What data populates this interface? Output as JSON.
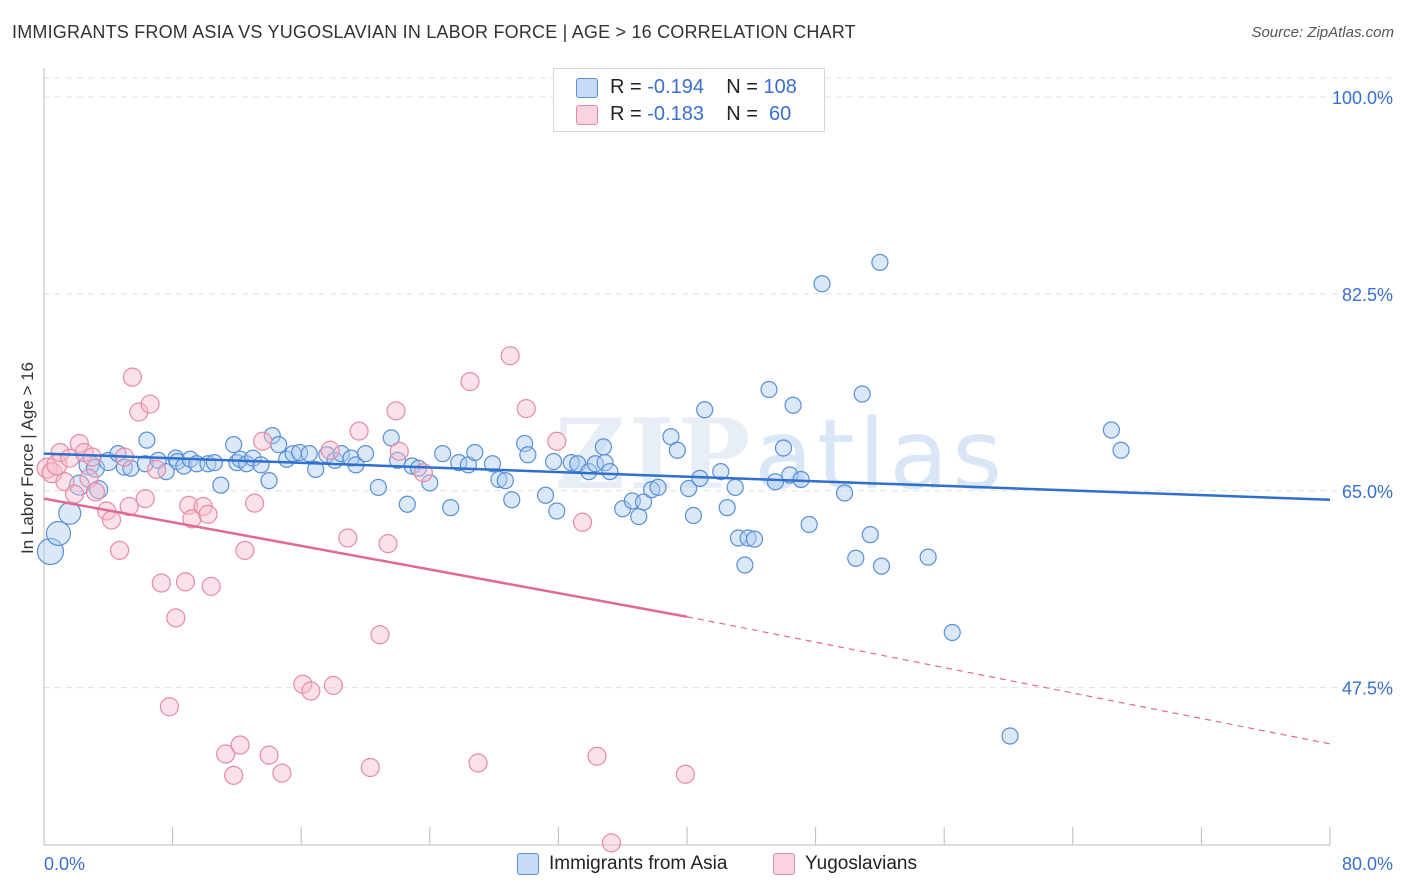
{
  "header": {
    "title": "IMMIGRANTS FROM ASIA VS YUGOSLAVIAN IN LABOR FORCE | AGE > 16 CORRELATION CHART",
    "source": "Source: ZipAtlas.com"
  },
  "legend_stats": [
    {
      "r_label": "R = ",
      "r_value": "-0.194",
      "n_label": "N = ",
      "n_value": "108",
      "color": "#a9c8ef"
    },
    {
      "r_label": "R = ",
      "r_value": "-0.183",
      "n_label": "N = ",
      "n_value": " 60",
      "color": "#f5b8c8"
    }
  ],
  "watermark": {
    "zip": "ZIP",
    "atlas": "atlas"
  },
  "chart_data": {
    "type": "scatter",
    "xlabel": "",
    "ylabel": "In Labor Force | Age > 16",
    "xlim": [
      0,
      80
    ],
    "ylim": [
      32,
      100
    ],
    "x_tick_labels": [
      "0.0%",
      "80.0%"
    ],
    "y_ticks": [
      47.5,
      65.0,
      82.5,
      100.0
    ],
    "y_tick_labels": [
      "47.5%",
      "65.0%",
      "82.5%",
      "100.0%"
    ],
    "grid": true,
    "series": [
      {
        "name": "Immigrants from Asia",
        "color": "#5b8fd6",
        "fill": "#aecbef",
        "trend": {
          "x": [
            0,
            80
          ],
          "y": [
            68.3,
            64.2
          ],
          "color": "#2f6fce"
        },
        "points": [
          [
            0.4,
            59.6,
            13
          ],
          [
            0.9,
            61.2,
            12
          ],
          [
            1.6,
            63.0,
            11
          ],
          [
            2.2,
            65.5,
            10
          ],
          [
            2.8,
            67.3,
            10
          ],
          [
            3.2,
            67.0,
            9
          ],
          [
            3.4,
            65.1,
            9
          ],
          [
            4.0,
            67.6,
            9
          ],
          [
            4.6,
            68.3,
            8
          ],
          [
            5.0,
            67.1,
            8
          ],
          [
            5.4,
            67.0,
            8
          ],
          [
            6.3,
            67.4,
            8
          ],
          [
            6.4,
            69.5,
            8
          ],
          [
            7.1,
            67.7,
            8
          ],
          [
            7.6,
            66.7,
            8
          ],
          [
            8.2,
            67.9,
            8
          ],
          [
            8.3,
            67.6,
            8
          ],
          [
            8.7,
            67.2,
            8
          ],
          [
            9.1,
            67.8,
            8
          ],
          [
            9.5,
            67.4,
            8
          ],
          [
            10.2,
            67.4,
            8
          ],
          [
            10.6,
            67.5,
            8
          ],
          [
            11.0,
            65.5,
            8
          ],
          [
            11.8,
            69.1,
            8
          ],
          [
            12.0,
            67.5,
            8
          ],
          [
            12.2,
            67.8,
            8
          ],
          [
            12.6,
            67.4,
            8
          ],
          [
            13.0,
            67.9,
            8
          ],
          [
            13.5,
            67.3,
            8
          ],
          [
            14.0,
            65.9,
            8
          ],
          [
            14.2,
            69.9,
            8
          ],
          [
            14.6,
            69.1,
            8
          ],
          [
            15.1,
            67.8,
            8
          ],
          [
            15.5,
            68.3,
            8
          ],
          [
            15.9,
            68.4,
            8
          ],
          [
            16.5,
            68.3,
            8
          ],
          [
            16.9,
            66.9,
            8
          ],
          [
            17.6,
            68.2,
            8
          ],
          [
            18.1,
            67.7,
            8
          ],
          [
            18.5,
            68.3,
            8
          ],
          [
            19.1,
            67.9,
            8
          ],
          [
            19.4,
            67.3,
            8
          ],
          [
            20.0,
            68.3,
            8
          ],
          [
            20.8,
            65.3,
            8
          ],
          [
            21.6,
            69.7,
            8
          ],
          [
            22.0,
            67.7,
            8
          ],
          [
            22.6,
            63.8,
            8
          ],
          [
            22.9,
            67.2,
            8
          ],
          [
            23.3,
            67.0,
            8
          ],
          [
            24.0,
            65.7,
            8
          ],
          [
            24.8,
            68.3,
            8
          ],
          [
            25.3,
            63.5,
            8
          ],
          [
            25.8,
            67.5,
            8
          ],
          [
            26.4,
            67.3,
            8
          ],
          [
            26.8,
            68.4,
            8
          ],
          [
            27.9,
            67.4,
            8
          ],
          [
            28.3,
            66.0,
            8
          ],
          [
            28.7,
            65.9,
            8
          ],
          [
            29.1,
            64.2,
            8
          ],
          [
            29.9,
            69.2,
            8
          ],
          [
            30.1,
            68.2,
            8
          ],
          [
            31.2,
            64.6,
            8
          ],
          [
            31.7,
            67.6,
            8
          ],
          [
            31.9,
            63.2,
            8
          ],
          [
            32.8,
            67.5,
            8
          ],
          [
            33.2,
            67.4,
            8
          ],
          [
            33.9,
            66.7,
            8
          ],
          [
            34.3,
            67.4,
            8
          ],
          [
            34.8,
            68.9,
            8
          ],
          [
            34.9,
            67.5,
            8
          ],
          [
            35.2,
            66.7,
            8
          ],
          [
            36.0,
            63.4,
            8
          ],
          [
            36.6,
            64.1,
            8
          ],
          [
            37.0,
            62.7,
            8
          ],
          [
            37.3,
            64.0,
            8
          ],
          [
            37.8,
            65.1,
            8
          ],
          [
            38.2,
            65.3,
            8
          ],
          [
            39.0,
            69.8,
            8
          ],
          [
            39.4,
            68.6,
            8
          ],
          [
            40.1,
            65.2,
            8
          ],
          [
            40.4,
            62.8,
            8
          ],
          [
            40.8,
            66.1,
            8
          ],
          [
            41.1,
            72.2,
            8
          ],
          [
            42.1,
            66.7,
            8
          ],
          [
            42.5,
            63.5,
            8
          ],
          [
            43.0,
            65.3,
            8
          ],
          [
            43.2,
            60.8,
            8
          ],
          [
            43.6,
            58.4,
            8
          ],
          [
            43.8,
            60.8,
            8
          ],
          [
            44.2,
            60.7,
            8
          ],
          [
            45.1,
            74.0,
            8
          ],
          [
            45.5,
            65.8,
            8
          ],
          [
            46.0,
            68.8,
            8
          ],
          [
            46.4,
            66.4,
            8
          ],
          [
            46.6,
            72.6,
            8
          ],
          [
            47.1,
            66.0,
            8
          ],
          [
            47.6,
            62.0,
            8
          ],
          [
            48.4,
            83.4,
            8
          ],
          [
            49.8,
            64.8,
            8
          ],
          [
            50.5,
            59.0,
            8
          ],
          [
            50.9,
            73.6,
            8
          ],
          [
            51.4,
            61.1,
            8
          ],
          [
            52.1,
            58.3,
            8
          ],
          [
            52.0,
            85.3,
            8
          ],
          [
            55.0,
            59.1,
            8
          ],
          [
            56.5,
            52.4,
            8
          ],
          [
            60.1,
            43.2,
            8
          ],
          [
            66.4,
            70.4,
            8
          ],
          [
            67.0,
            68.6,
            8
          ]
        ]
      },
      {
        "name": "Yugoslavians",
        "color": "#e48aa4",
        "fill": "#f6bccb",
        "trend": {
          "x": [
            0,
            40
          ],
          "y": [
            64.3,
            53.8
          ],
          "color": "#e06a92"
        },
        "trend_ext": {
          "x": [
            40,
            80
          ],
          "y": [
            53.8,
            42.5
          ]
        },
        "points": [
          [
            0.2,
            67.0,
            10
          ],
          [
            0.5,
            66.6,
            10
          ],
          [
            0.8,
            67.3,
            10
          ],
          [
            1.0,
            68.4,
            9
          ],
          [
            1.3,
            65.8,
            9
          ],
          [
            1.6,
            67.9,
            9
          ],
          [
            1.9,
            64.7,
            9
          ],
          [
            2.2,
            69.2,
            9
          ],
          [
            2.5,
            68.4,
            9
          ],
          [
            2.8,
            66.1,
            9
          ],
          [
            3.0,
            68.0,
            9
          ],
          [
            3.2,
            64.9,
            9
          ],
          [
            3.9,
            63.2,
            9
          ],
          [
            4.2,
            62.4,
            9
          ],
          [
            4.7,
            59.7,
            9
          ],
          [
            5.0,
            68.0,
            9
          ],
          [
            5.3,
            63.6,
            9
          ],
          [
            5.5,
            75.1,
            9
          ],
          [
            5.9,
            72.0,
            9
          ],
          [
            6.3,
            64.3,
            9
          ],
          [
            6.6,
            72.7,
            9
          ],
          [
            7.0,
            66.9,
            9
          ],
          [
            7.3,
            56.8,
            9
          ],
          [
            7.8,
            45.8,
            9
          ],
          [
            8.2,
            53.7,
            9
          ],
          [
            8.8,
            56.9,
            9
          ],
          [
            9.0,
            63.7,
            9
          ],
          [
            9.2,
            62.5,
            9
          ],
          [
            9.9,
            63.6,
            9
          ],
          [
            10.2,
            62.9,
            9
          ],
          [
            10.4,
            56.5,
            9
          ],
          [
            11.3,
            41.6,
            9
          ],
          [
            11.8,
            39.7,
            9
          ],
          [
            12.2,
            42.4,
            9
          ],
          [
            12.5,
            59.7,
            9
          ],
          [
            13.1,
            63.9,
            9
          ],
          [
            13.6,
            69.4,
            9
          ],
          [
            14.0,
            41.5,
            9
          ],
          [
            14.8,
            39.9,
            9
          ],
          [
            16.1,
            47.8,
            9
          ],
          [
            16.6,
            47.2,
            9
          ],
          [
            17.8,
            68.6,
            9
          ],
          [
            18.0,
            47.7,
            9
          ],
          [
            18.9,
            60.8,
            9
          ],
          [
            19.6,
            70.3,
            9
          ],
          [
            20.3,
            40.4,
            9
          ],
          [
            20.9,
            52.2,
            9
          ],
          [
            21.4,
            60.3,
            9
          ],
          [
            21.9,
            72.1,
            9
          ],
          [
            22.1,
            68.5,
            9
          ],
          [
            23.6,
            66.6,
            9
          ],
          [
            26.5,
            74.7,
            9
          ],
          [
            27.0,
            40.8,
            9
          ],
          [
            29.0,
            77.0,
            9
          ],
          [
            30.0,
            72.3,
            9
          ],
          [
            31.9,
            69.4,
            9
          ],
          [
            33.5,
            62.2,
            9
          ],
          [
            34.4,
            41.4,
            9
          ],
          [
            35.3,
            33.7,
            9
          ],
          [
            39.9,
            39.8,
            9
          ]
        ]
      }
    ]
  }
}
